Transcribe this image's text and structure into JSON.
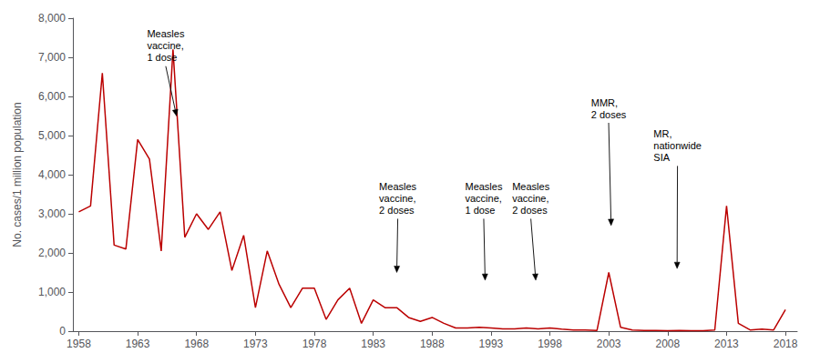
{
  "chart_data": {
    "type": "line",
    "x": [
      1958,
      1959,
      1960,
      1961,
      1962,
      1963,
      1964,
      1965,
      1966,
      1967,
      1968,
      1969,
      1970,
      1971,
      1972,
      1973,
      1974,
      1975,
      1976,
      1977,
      1978,
      1979,
      1980,
      1981,
      1982,
      1983,
      1984,
      1985,
      1986,
      1987,
      1988,
      1989,
      1990,
      1991,
      1992,
      1993,
      1994,
      1995,
      1996,
      1997,
      1998,
      1999,
      2000,
      2001,
      2002,
      2003,
      2004,
      2005,
      2006,
      2007,
      2008,
      2009,
      2010,
      2011,
      2012,
      2013,
      2014,
      2015,
      2016,
      2017,
      2018
    ],
    "values": [
      3050,
      3200,
      6600,
      2200,
      2100,
      4900,
      4400,
      2050,
      7200,
      2400,
      3000,
      2600,
      3050,
      1550,
      2450,
      600,
      2050,
      1200,
      600,
      1100,
      1100,
      300,
      800,
      1100,
      200,
      800,
      600,
      600,
      350,
      250,
      350,
      200,
      80,
      80,
      100,
      80,
      60,
      60,
      80,
      60,
      80,
      50,
      30,
      30,
      20,
      1500,
      100,
      30,
      20,
      20,
      10,
      20,
      10,
      10,
      30,
      3200,
      200,
      30,
      50,
      30,
      550
    ],
    "color": "#bb0000",
    "ylabel": "No. cases/1 million population",
    "xlim": [
      1957.5,
      2019
    ],
    "xticks": [
      1958,
      1963,
      1968,
      1973,
      1978,
      1983,
      1988,
      1993,
      1998,
      2003,
      2008,
      2013,
      2018
    ],
    "ylim": [
      0,
      8000
    ],
    "yticks": [
      0,
      {
        "value": 1000,
        "label": "1,000"
      },
      {
        "value": 2000,
        "label": "2,000"
      },
      {
        "value": 3000,
        "label": "3,000"
      },
      {
        "value": 4000,
        "label": "4,000"
      },
      {
        "value": 5000,
        "label": "5,000"
      },
      {
        "value": 6000,
        "label": "6,000"
      },
      {
        "value": 7000,
        "label": "7,000"
      },
      {
        "value": 8000,
        "label": "8,000"
      }
    ],
    "grid": false,
    "annotations": [
      {
        "text": "Measles\nvaccine,\n1 dose",
        "x": 1963.8,
        "y": 7750,
        "arrow_x": 1966.3,
        "arrow_y": 5500
      },
      {
        "text": "Measles\nvaccine,\n2 doses",
        "x": 1983.5,
        "y": 3850,
        "arrow_x": 1985.0,
        "arrow_y": 1500
      },
      {
        "text": "Measles\nvaccine,\n1 dose",
        "x": 1990.8,
        "y": 3850,
        "arrow_x": 1992.5,
        "arrow_y": 1300
      },
      {
        "text": "Measles\nvaccine,\n2 doses",
        "x": 1994.8,
        "y": 3850,
        "arrow_x": 1996.8,
        "arrow_y": 1300
      },
      {
        "text": "MMR,\n2 doses",
        "x": 2001.5,
        "y": 6000,
        "arrow_x": 2003.2,
        "arrow_y": 2700
      },
      {
        "text": "MR,\nnationwide\nSIA",
        "x": 2006.8,
        "y": 5200,
        "arrow_x": 2008.8,
        "arrow_y": 1600
      }
    ]
  }
}
